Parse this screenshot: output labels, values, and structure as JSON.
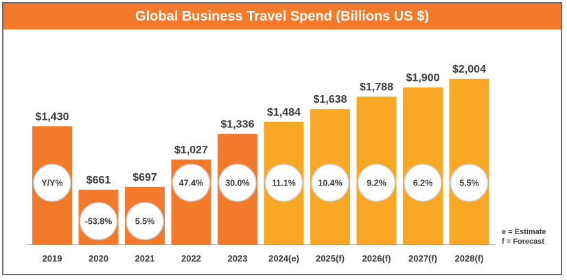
{
  "chart_data": {
    "type": "bar",
    "title": "Global Business Travel Spend (Billions US $)",
    "categories": [
      "2019",
      "2020",
      "2021",
      "2022",
      "2023",
      "2024(e)",
      "2025(f)",
      "2026(f)",
      "2027(f)",
      "2028(f)"
    ],
    "values": [
      1430,
      661,
      697,
      1027,
      1336,
      1484,
      1638,
      1788,
      1900,
      2004
    ],
    "value_labels": [
      "$1,430",
      "$661",
      "$697",
      "$1,027",
      "$1,336",
      "$1,484",
      "$1,638",
      "$1,788",
      "$1,900",
      "$2,004"
    ],
    "growth_labels": [
      "Y/Y%",
      "-53.8%",
      "5.5%",
      "47.4%",
      "30.0%",
      "11.1%",
      "10.4%",
      "9.2%",
      "6.2%",
      "5.5%"
    ],
    "bar_colors": [
      "#f37a2a",
      "#f37a2a",
      "#f37a2a",
      "#f37a2a",
      "#f37a2a",
      "#f9a825",
      "#f9a825",
      "#f9a825",
      "#f9a825",
      "#f9a825"
    ],
    "ylim": [
      0,
      2004
    ],
    "xlabel": "",
    "ylabel": "",
    "grid": false
  },
  "legend": {
    "estimate": "e = Estimate",
    "forecast": "f = Forecast"
  },
  "colors": {
    "title_bar": "#f37a2a",
    "actual": "#f37a2a",
    "projected": "#f9a825",
    "axis": "#9e9e9e",
    "label_text": "#3a3a3a"
  }
}
